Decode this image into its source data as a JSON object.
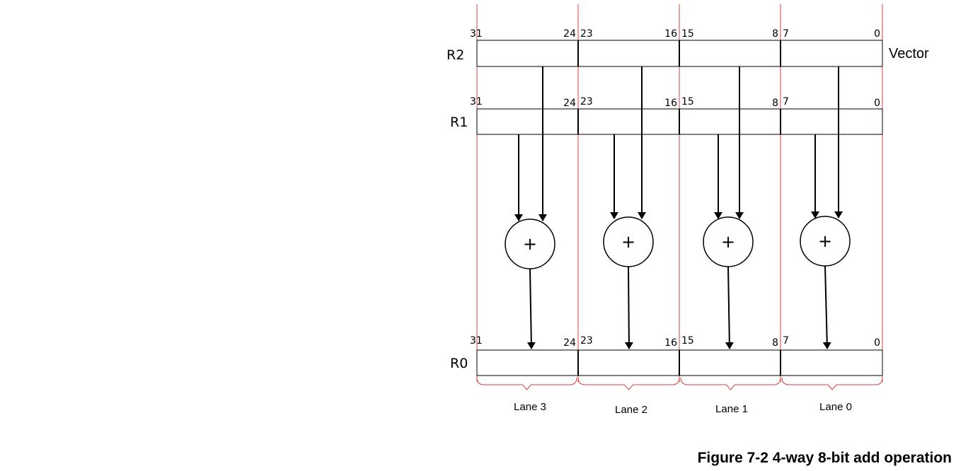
{
  "registers": [
    {
      "name": "R2",
      "bits": [
        "31",
        "24",
        "23",
        "16",
        "15",
        "8",
        "7",
        "0"
      ]
    },
    {
      "name": "R1",
      "bits": [
        "31",
        "24",
        "23",
        "16",
        "15",
        "8",
        "7",
        "0"
      ]
    },
    {
      "name": "R0",
      "bits": [
        "31",
        "24",
        "23",
        "16",
        "15",
        "8",
        "7",
        "0"
      ]
    }
  ],
  "vector_label": "Vector",
  "operator": "+",
  "lanes": [
    "Lane 3",
    "Lane 2",
    "Lane 1",
    "Lane 0"
  ],
  "caption": "Figure 7-2 4-way 8-bit add operation",
  "colors": {
    "lane_divider": "#e03c3c",
    "stroke": "#000000",
    "background": "#ffffff"
  }
}
